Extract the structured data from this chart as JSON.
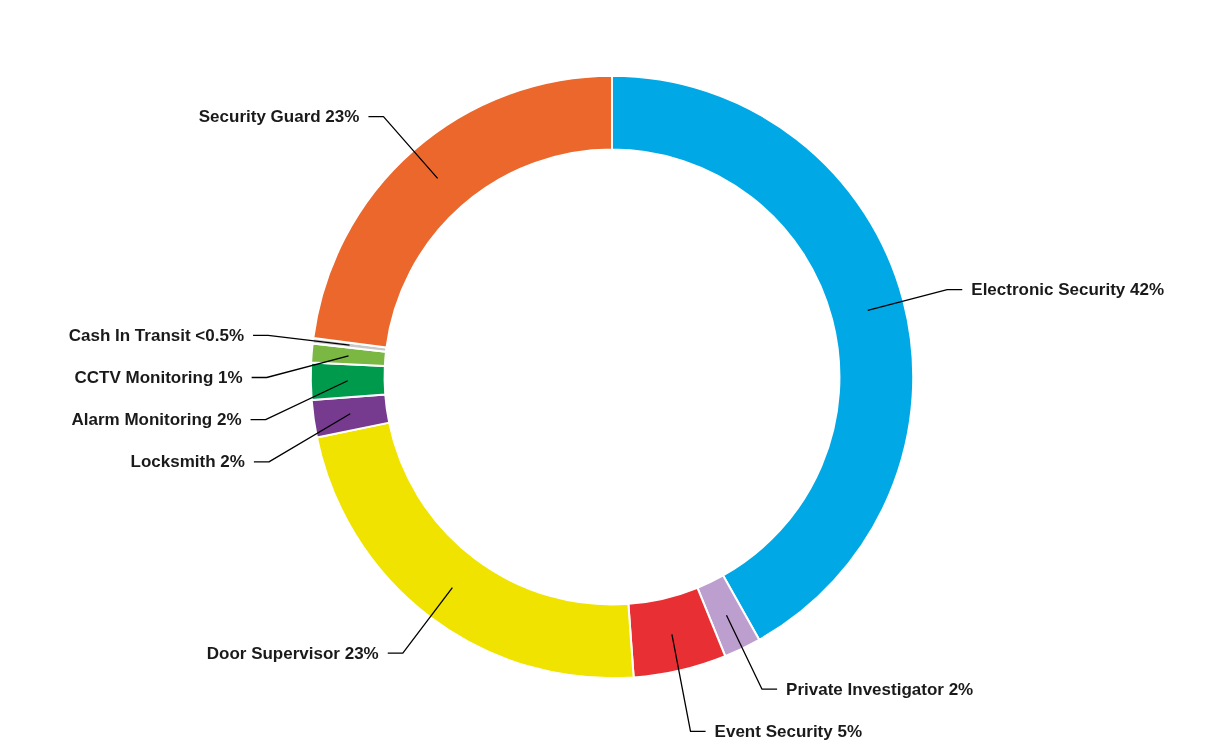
{
  "chart_data": {
    "type": "donut",
    "categories": [
      "Electronic Security",
      "Private Investigator",
      "Event Security",
      "Door Supervisor",
      "Locksmith",
      "Alarm Monitoring",
      "CCTV Monitoring",
      "Cash In Transit",
      "Security Guard"
    ],
    "values": [
      42,
      2,
      5,
      23,
      2,
      2,
      1,
      0.3,
      23
    ],
    "value_labels": [
      "42%",
      "2%",
      "5%",
      "23%",
      "2%",
      "2%",
      "1%",
      "<0.5%",
      "23%"
    ],
    "colors": [
      "#00a9e6",
      "#bd9fcf",
      "#e83034",
      "#f0e300",
      "#763a8f",
      "#009a4c",
      "#7ab843",
      "#c9c9c9",
      "#eb672c"
    ]
  }
}
